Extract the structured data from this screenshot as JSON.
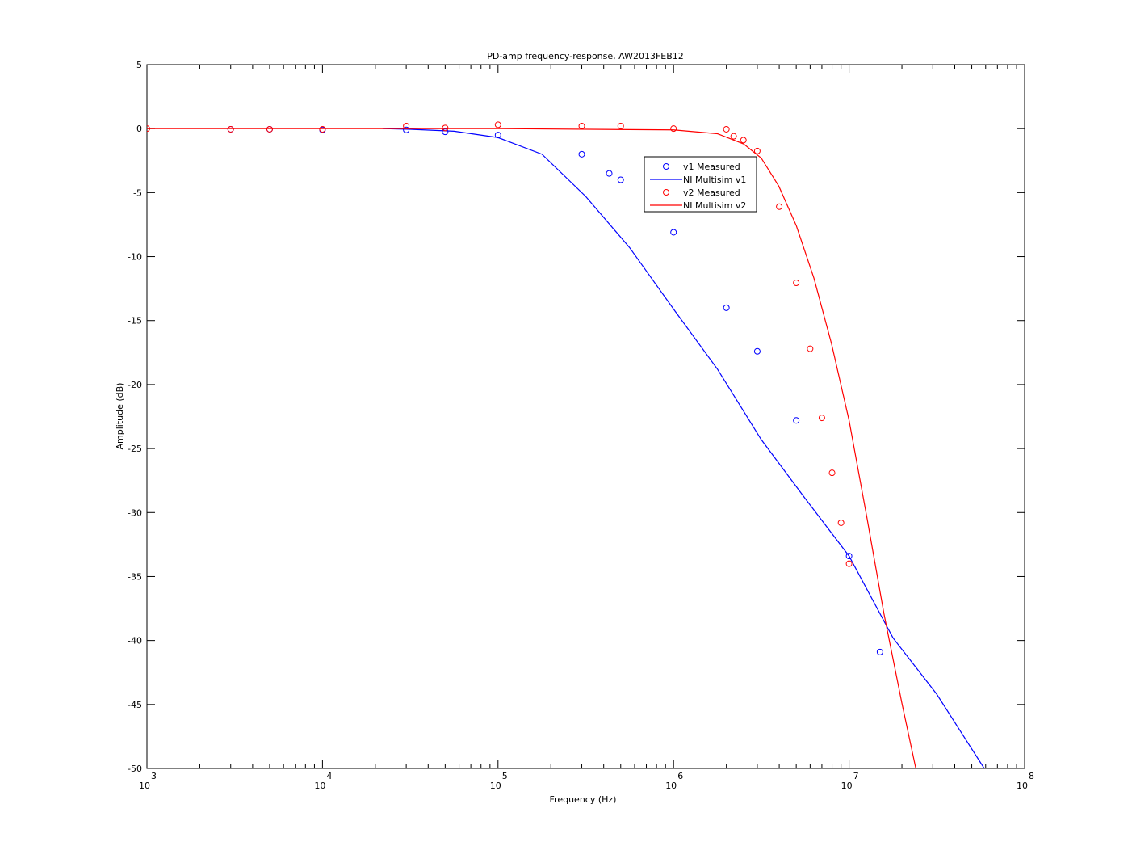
{
  "chart_data": {
    "type": "line",
    "title": "PD-amp frequency-response, AW2013FEB12",
    "x_label": "Frequency (Hz)",
    "y_label": "Amplitude (dB)",
    "xscale": "log",
    "xlim": [
      1000,
      100000000
    ],
    "ylim": [
      -50,
      5
    ],
    "xticks": [
      {
        "value": 1000,
        "label": "10",
        "exponent": "3"
      },
      {
        "value": 10000,
        "label": "10",
        "exponent": "4"
      },
      {
        "value": 100000,
        "label": "10",
        "exponent": "5"
      },
      {
        "value": 1000000,
        "label": "10",
        "exponent": "6"
      },
      {
        "value": 10000000,
        "label": "10",
        "exponent": "7"
      },
      {
        "value": 100000000,
        "label": "10",
        "exponent": "8"
      }
    ],
    "yticks": [
      5,
      0,
      -5,
      -10,
      -15,
      -20,
      -25,
      -30,
      -35,
      -40,
      -45,
      -50
    ],
    "grid": false,
    "legend": true,
    "series": [
      {
        "name": "v1 Measured",
        "color": "#0000ff",
        "style": "marker",
        "x": [
          3000,
          5000,
          10000,
          30000,
          50000,
          100000,
          300000,
          430000,
          500000,
          1000000,
          2000000,
          3000000,
          5000000,
          10000000,
          15000000
        ],
        "values": [
          -0.05,
          -0.05,
          -0.1,
          -0.1,
          -0.25,
          -0.5,
          -2.0,
          -3.5,
          -4.0,
          -8.1,
          -14.0,
          -17.4,
          -22.8,
          -33.4,
          -40.9
        ]
      },
      {
        "name": "NI Multisim v1",
        "color": "#0000ff",
        "style": "line",
        "x": [
          22000,
          31600,
          56200,
          100000,
          178000,
          316000,
          562000,
          1000000,
          1780000,
          3160000,
          5620000,
          10000000,
          17800000,
          31600000,
          58900000
        ],
        "values": [
          0,
          -0.05,
          -0.2,
          -0.7,
          -2.0,
          -5.3,
          -9.3,
          -14.1,
          -18.8,
          -24.3,
          -28.9,
          -33.4,
          -39.8,
          -44.2,
          -50
        ]
      },
      {
        "name": "v2 Measured",
        "color": "#ff0000",
        "style": "marker",
        "x": [
          1000,
          3000,
          5000,
          10000,
          30000,
          50000,
          100000,
          300000,
          500000,
          1000000,
          2000000,
          2200000,
          2500000,
          3000000,
          4000000,
          5000000,
          6000000,
          7000000,
          8000000,
          9000000,
          10000000
        ],
        "values": [
          0,
          -0.05,
          -0.05,
          -0.05,
          0.2,
          0.05,
          0.3,
          0.2,
          0.2,
          0,
          -0.05,
          -0.6,
          -0.9,
          -1.75,
          -6.1,
          -12.05,
          -17.2,
          -22.6,
          -26.9,
          -30.8,
          -34.0
        ]
      },
      {
        "name": "NI Multisim v2",
        "color": "#ff0000",
        "style": "line",
        "x": [
          1000,
          10000,
          100000,
          1000000,
          1780000,
          2510000,
          3160000,
          3980000,
          5010000,
          6310000,
          7940000,
          10000000,
          12600000,
          15800000,
          20000000,
          24000000
        ],
        "values": [
          0,
          0,
          0,
          -0.1,
          -0.4,
          -1.2,
          -2.3,
          -4.5,
          -7.6,
          -11.7,
          -16.8,
          -22.8,
          -30.3,
          -37.9,
          -44.9,
          -50
        ]
      }
    ]
  }
}
